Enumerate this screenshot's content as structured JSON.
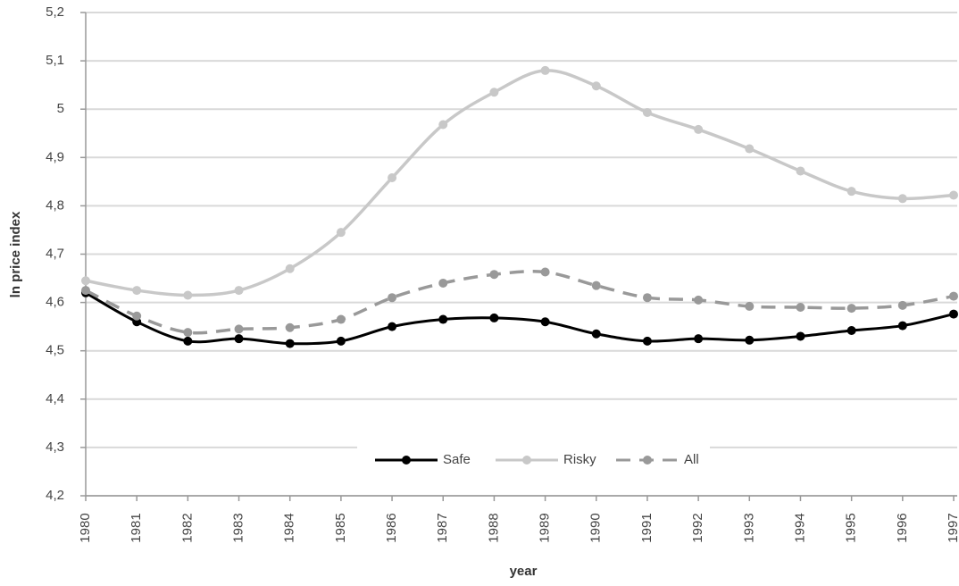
{
  "chart_data": {
    "type": "line",
    "x_label": "year",
    "y_label": "ln price index",
    "categories": [
      "1980",
      "1981",
      "1982",
      "1983",
      "1984",
      "1985",
      "1986",
      "1987",
      "1988",
      "1989",
      "1990",
      "1991",
      "1992",
      "1993",
      "1994",
      "1995",
      "1996",
      "1997"
    ],
    "series": [
      {
        "name": "Safe",
        "color": "#000000",
        "dashed": false,
        "values": [
          4.62,
          4.56,
          4.52,
          4.525,
          4.515,
          4.52,
          4.55,
          4.565,
          4.568,
          4.56,
          4.535,
          4.52,
          4.525,
          4.522,
          4.53,
          4.542,
          4.552,
          4.576
        ]
      },
      {
        "name": "Risky",
        "color": "#c8c8c8",
        "dashed": false,
        "values": [
          4.645,
          4.625,
          4.615,
          4.625,
          4.67,
          4.745,
          4.858,
          4.968,
          5.035,
          5.08,
          5.048,
          4.993,
          4.958,
          4.918,
          4.872,
          4.83,
          4.815,
          4.822
        ]
      },
      {
        "name": "All",
        "color": "#999999",
        "dashed": true,
        "values": [
          4.625,
          4.572,
          4.538,
          4.545,
          4.548,
          4.565,
          4.61,
          4.64,
          4.658,
          4.663,
          4.635,
          4.61,
          4.605,
          4.592,
          4.59,
          4.588,
          4.594,
          4.613
        ]
      }
    ],
    "ylim": [
      4.2,
      5.2
    ],
    "yticks": [
      {
        "value": 4.2,
        "label": "4,2"
      },
      {
        "value": 4.3,
        "label": "4,3"
      },
      {
        "value": 4.4,
        "label": "4,4"
      },
      {
        "value": 4.5,
        "label": "4,5"
      },
      {
        "value": 4.6,
        "label": "4,6"
      },
      {
        "value": 4.7,
        "label": "4,7"
      },
      {
        "value": 4.8,
        "label": "4,8"
      },
      {
        "value": 4.9,
        "label": "4,9"
      },
      5,
      {
        "value": 5.1,
        "label": "5,1"
      },
      {
        "value": 5.2,
        "label": "5,2"
      }
    ],
    "grid": true,
    "legend": "lower center"
  }
}
